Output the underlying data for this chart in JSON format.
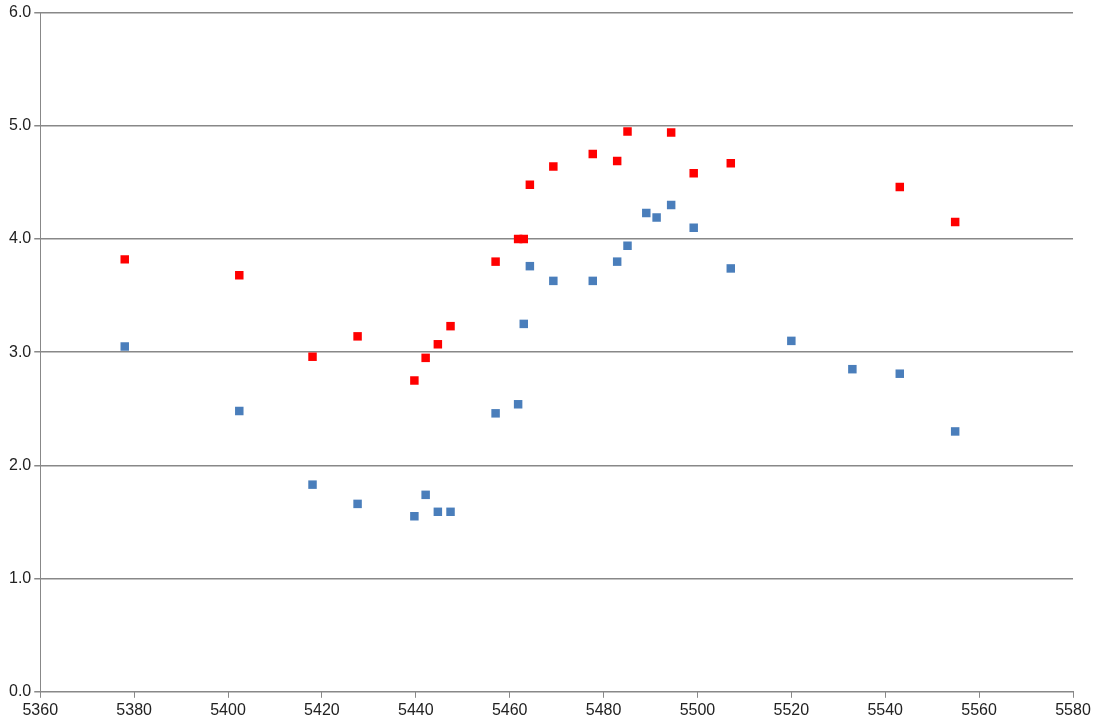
{
  "chart_data": {
    "type": "scatter",
    "marker": "square",
    "grid": "y",
    "legend": false,
    "xlim": [
      5360,
      5580
    ],
    "xticks": [
      5360,
      5380,
      5400,
      5420,
      5440,
      5460,
      5480,
      5500,
      5520,
      5540,
      5560,
      5580
    ],
    "ylim": [
      0,
      6
    ],
    "yticks": [
      {
        "value": 0,
        "label": "0.0"
      },
      {
        "value": 1,
        "label": "1.0"
      },
      {
        "value": 2,
        "label": "2.0"
      },
      {
        "value": 3,
        "label": "3.0"
      },
      {
        "value": 4,
        "label": "4.0"
      },
      {
        "value": 5,
        "label": "5.0"
      },
      {
        "value": 6,
        "label": "6.0"
      }
    ],
    "series": [
      {
        "color": "#ff0000",
        "x": [
          5378,
          5402.4,
          5418,
          5427.6,
          5439.7,
          5442.1,
          5444.7,
          5447.4,
          5457,
          5461.8,
          5463,
          5464.3,
          5469.3,
          5477.7,
          5482.9,
          5485.1,
          5494.4,
          5499.2,
          5507.1,
          5543.1,
          5554.9
        ],
        "values": [
          3.82,
          3.68,
          2.96,
          3.14,
          2.75,
          2.95,
          3.07,
          3.23,
          3.8,
          4.0,
          4.0,
          4.48,
          4.64,
          4.75,
          4.69,
          4.95,
          4.94,
          4.58,
          4.67,
          4.46,
          4.15
        ]
      },
      {
        "color": "#4a7ebb",
        "x": [
          5378,
          5402.4,
          5418,
          5427.6,
          5439.7,
          5442.1,
          5444.7,
          5447.4,
          5457,
          5461.8,
          5463,
          5464.3,
          5469.3,
          5477.7,
          5482.9,
          5485.1,
          5489.1,
          5491.3,
          5494.4,
          5499.2,
          5507.1,
          5520,
          5533,
          5543.1,
          5554.9
        ],
        "values": [
          3.05,
          2.48,
          1.83,
          1.66,
          1.55,
          1.74,
          1.59,
          1.59,
          2.46,
          2.54,
          3.25,
          3.76,
          3.63,
          3.63,
          3.8,
          3.94,
          4.23,
          4.19,
          4.3,
          4.1,
          3.74,
          3.1,
          2.85,
          2.81,
          2.3
        ]
      }
    ]
  }
}
